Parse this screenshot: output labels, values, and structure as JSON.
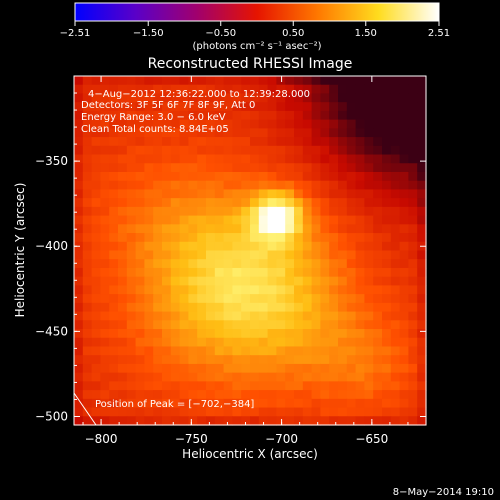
{
  "chart_data": {
    "type": "heatmap",
    "title": "Reconstructed RHESSI Image",
    "xlabel": "Heliocentric X (arcsec)",
    "ylabel": "Heliocentric Y (arcsec)",
    "xlim": [
      -815,
      -620
    ],
    "ylim": [
      -505,
      -300
    ],
    "x_ticks": [
      -800,
      -750,
      -700,
      -650
    ],
    "x_tick_labels": [
      "−800",
      "−750",
      "−700",
      "−650"
    ],
    "y_ticks": [
      -350,
      -400,
      -450,
      -500
    ],
    "y_tick_labels": [
      "−350",
      "−400",
      "−450",
      "−500"
    ],
    "colorbar": {
      "min": -2.51,
      "max": 2.51,
      "ticks": [
        -2.51,
        -1.5,
        -0.5,
        0.5,
        1.5,
        2.51
      ],
      "tick_labels": [
        "−2.51",
        "−1.50",
        "−0.50",
        "0.50",
        "1.50",
        "2.51"
      ],
      "units": "(photons cm⁻² s⁻¹ asec⁻²)",
      "colors": [
        "#0000ff",
        "#5a00c8",
        "#a0006e",
        "#e61400",
        "#ff7800",
        "#ffdc1e",
        "#ffffff"
      ]
    },
    "annotations": [
      "4−Aug−2012 12:36:22.000 to 12:39:28.000",
      "Detectors: 3F 5F 6F 7F 8F 9F, Att 0",
      "Energy Range: 3.0 − 6.0 keV",
      "Clean     Total counts: 8.84E+05"
    ],
    "peak_label": "Position of Peak = [−702,−384]",
    "peak": [
      -702,
      -384
    ],
    "features": [
      {
        "x": -702,
        "y": -382,
        "amp": 1.3,
        "sigma": 10
      },
      {
        "x": -715,
        "y": -410,
        "amp": 0.9,
        "sigma": 35
      },
      {
        "x": -745,
        "y": -440,
        "amp": 0.55,
        "sigma": 35
      },
      {
        "x": -690,
        "y": -450,
        "amp": 0.4,
        "sigma": 30
      },
      {
        "x": -650,
        "y": -470,
        "amp": 0.4,
        "sigma": 22
      },
      {
        "x": -770,
        "y": -380,
        "amp": 0.35,
        "sigma": 30
      }
    ],
    "dark_corner": {
      "x": -620,
      "y": -300,
      "amp": 2.2,
      "sigma": 40
    },
    "footer": "8−May−2014 19:10"
  }
}
